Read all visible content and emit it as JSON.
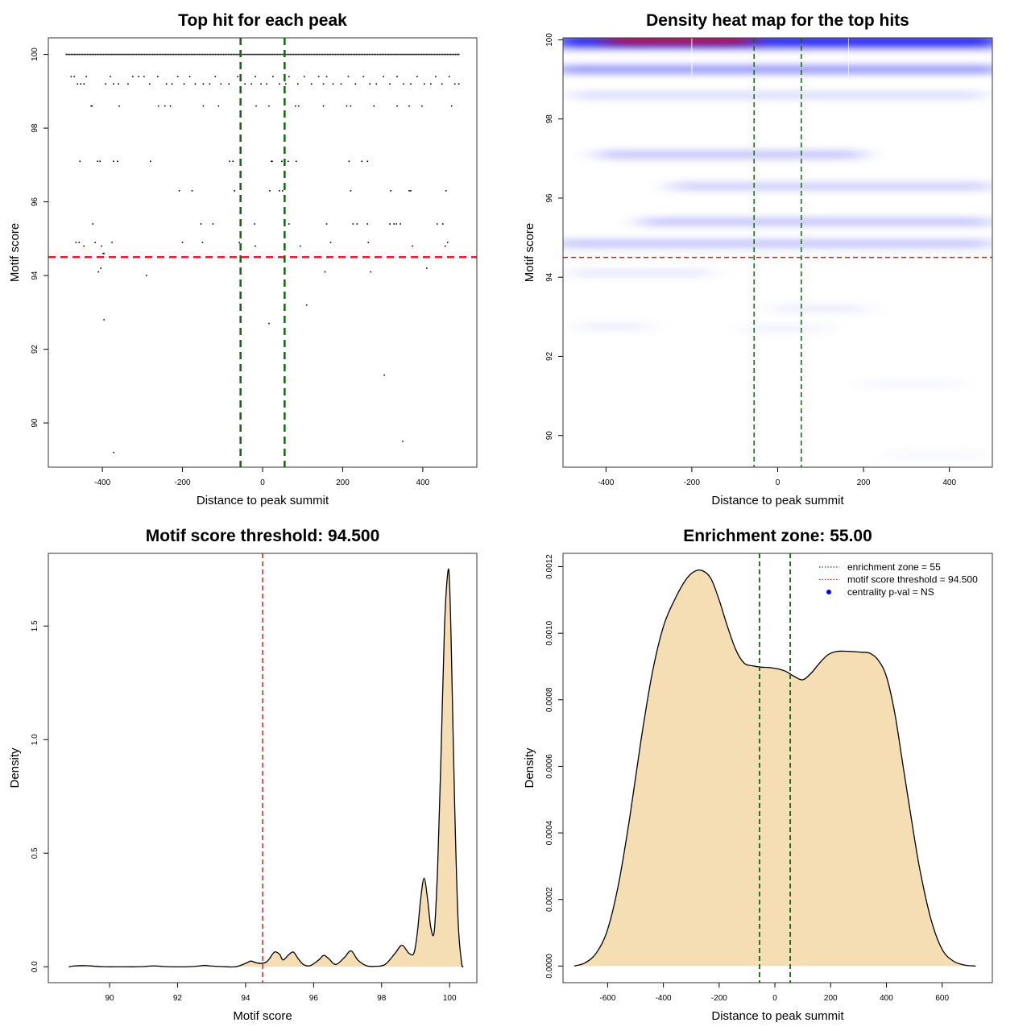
{
  "colors": {
    "threshold": "#dd2222",
    "zone": "#116611",
    "fill": "#f5deb3",
    "heat_low": "#ffffff",
    "heat_mid": "#0000ee",
    "heat_high": "#ee0000"
  },
  "chart_data": [
    {
      "type": "scatter",
      "title": "Top hit for each peak",
      "xlabel": "Distance to peak summit",
      "ylabel": "Motif score",
      "xlim": [
        -535,
        535
      ],
      "ylim": [
        88.8,
        100.45
      ],
      "xticks": [
        -400,
        -200,
        0,
        200,
        400
      ],
      "yticks": [
        90,
        92,
        94,
        96,
        98,
        100
      ],
      "threshold": 94.5,
      "zone": [
        -55,
        55
      ],
      "points": [
        [
          -478,
          99.4
        ],
        [
          -470,
          99.4
        ],
        [
          -462,
          99.2
        ],
        [
          -454,
          99.2
        ],
        [
          -446,
          99.2
        ],
        [
          -440,
          99.4
        ],
        [
          -392,
          99.2
        ],
        [
          -380,
          99.4
        ],
        [
          -372,
          99.2
        ],
        [
          -360,
          99.2
        ],
        [
          -336,
          99.2
        ],
        [
          -324,
          99.4
        ],
        [
          -310,
          99.4
        ],
        [
          -296,
          99.4
        ],
        [
          -282,
          99.2
        ],
        [
          -262,
          99.4
        ],
        [
          -240,
          99.2
        ],
        [
          -226,
          99.2
        ],
        [
          -212,
          99.4
        ],
        [
          -196,
          99.2
        ],
        [
          -182,
          99.4
        ],
        [
          -168,
          99.2
        ],
        [
          -148,
          99.2
        ],
        [
          -132,
          99.2
        ],
        [
          -118,
          99.4
        ],
        [
          -104,
          99.2
        ],
        [
          -84,
          99.2
        ],
        [
          -62,
          99.4
        ],
        [
          -44,
          99.2
        ],
        [
          -28,
          99.2
        ],
        [
          -18,
          99.4
        ],
        [
          -4,
          99.2
        ],
        [
          10,
          99.2
        ],
        [
          26,
          99.4
        ],
        [
          42,
          99.2
        ],
        [
          58,
          99.2
        ],
        [
          66,
          99.4
        ],
        [
          88,
          99.2
        ],
        [
          104,
          99.4
        ],
        [
          122,
          99.2
        ],
        [
          140,
          99.4
        ],
        [
          152,
          99.2
        ],
        [
          160,
          99.4
        ],
        [
          176,
          99.2
        ],
        [
          196,
          99.2
        ],
        [
          214,
          99.4
        ],
        [
          232,
          99.2
        ],
        [
          252,
          99.4
        ],
        [
          268,
          99.2
        ],
        [
          284,
          99.2
        ],
        [
          302,
          99.4
        ],
        [
          318,
          99.2
        ],
        [
          336,
          99.4
        ],
        [
          352,
          99.2
        ],
        [
          370,
          99.2
        ],
        [
          386,
          99.4
        ],
        [
          404,
          99.2
        ],
        [
          420,
          99.2
        ],
        [
          432,
          99.4
        ],
        [
          448,
          99.2
        ],
        [
          466,
          99.4
        ],
        [
          480,
          99.2
        ],
        [
          490,
          99.2
        ],
        [
          -428,
          98.6
        ],
        [
          -426,
          98.6
        ],
        [
          -358,
          98.6
        ],
        [
          -260,
          98.6
        ],
        [
          -244,
          98.6
        ],
        [
          -230,
          98.6
        ],
        [
          -148,
          98.6
        ],
        [
          -110,
          98.6
        ],
        [
          -16,
          98.6
        ],
        [
          16,
          98.6
        ],
        [
          82,
          98.6
        ],
        [
          90,
          98.6
        ],
        [
          152,
          98.6
        ],
        [
          210,
          98.6
        ],
        [
          220,
          98.6
        ],
        [
          278,
          98.6
        ],
        [
          336,
          98.6
        ],
        [
          366,
          98.6
        ],
        [
          398,
          98.6
        ],
        [
          472,
          98.6
        ],
        [
          -456,
          97.1
        ],
        [
          -412,
          97.1
        ],
        [
          -406,
          97.1
        ],
        [
          -372,
          97.1
        ],
        [
          -362,
          97.1
        ],
        [
          -280,
          97.1
        ],
        [
          -82,
          97.1
        ],
        [
          -74,
          97.1
        ],
        [
          22,
          97.1
        ],
        [
          24,
          97.1
        ],
        [
          48,
          97.1
        ],
        [
          64,
          97.1
        ],
        [
          84,
          97.1
        ],
        [
          216,
          97.1
        ],
        [
          248,
          97.1
        ],
        [
          262,
          97.1
        ],
        [
          -208,
          96.3
        ],
        [
          -176,
          96.3
        ],
        [
          -70,
          96.3
        ],
        [
          18,
          96.3
        ],
        [
          42,
          96.3
        ],
        [
          50,
          96.3
        ],
        [
          220,
          96.3
        ],
        [
          320,
          96.3
        ],
        [
          366,
          96.3
        ],
        [
          370,
          96.3
        ],
        [
          458,
          96.3
        ],
        [
          -424,
          95.4
        ],
        [
          -154,
          95.4
        ],
        [
          -124,
          95.4
        ],
        [
          -54,
          95.4
        ],
        [
          -20,
          95.4
        ],
        [
          66,
          95.4
        ],
        [
          160,
          95.4
        ],
        [
          226,
          95.4
        ],
        [
          236,
          95.4
        ],
        [
          262,
          95.4
        ],
        [
          318,
          95.4
        ],
        [
          328,
          95.4
        ],
        [
          334,
          95.4
        ],
        [
          344,
          95.4
        ],
        [
          436,
          95.4
        ],
        [
          450,
          95.4
        ],
        [
          -466,
          94.9
        ],
        [
          -458,
          94.9
        ],
        [
          -418,
          94.9
        ],
        [
          -376,
          94.9
        ],
        [
          -200,
          94.9
        ],
        [
          -150,
          94.9
        ],
        [
          -58,
          94.9
        ],
        [
          170,
          94.9
        ],
        [
          264,
          94.9
        ],
        [
          462,
          94.9
        ],
        [
          -446,
          94.8
        ],
        [
          -402,
          94.8
        ],
        [
          -18,
          94.8
        ],
        [
          94,
          94.8
        ],
        [
          374,
          94.8
        ],
        [
          456,
          94.8
        ],
        [
          -398,
          94.6
        ],
        [
          -396,
          94.6
        ],
        [
          -404,
          94.2
        ],
        [
          410,
          94.2
        ],
        [
          -410,
          94.1
        ],
        [
          -290,
          94.0
        ],
        [
          156,
          94.1
        ],
        [
          270,
          94.1
        ],
        [
          110,
          93.2
        ],
        [
          -396,
          92.8
        ],
        [
          16,
          92.7
        ],
        [
          304,
          91.3
        ],
        [
          -372,
          89.2
        ],
        [
          350,
          89.5
        ]
      ]
    },
    {
      "type": "heatmap",
      "title": "Density heat map for the top hits",
      "xlabel": "Distance to peak summit",
      "ylabel": "Motif score",
      "xlim": [
        -500,
        500
      ],
      "ylim": [
        89.2,
        100.05
      ],
      "xticks": [
        -400,
        -200,
        0,
        200,
        400
      ],
      "yticks": [
        90,
        92,
        94,
        96,
        98,
        100
      ],
      "threshold": 94.5,
      "zone": [
        -55,
        55
      ]
    },
    {
      "type": "area",
      "title": "Motif score threshold: 94.500",
      "xlabel": "Motif score",
      "ylabel": "Density",
      "xlim": [
        88.2,
        100.8
      ],
      "ylim": [
        -0.07,
        1.82
      ],
      "xticks": [
        90,
        92,
        94,
        96,
        98,
        100
      ],
      "yticks": [
        0.0,
        0.5,
        1.0,
        1.5
      ],
      "ytick_labels": [
        "0.0",
        "0.5",
        "1.0",
        "1.5"
      ],
      "threshold": 94.5,
      "x": [
        88.8,
        89.0,
        89.3,
        89.6,
        89.9,
        90.3,
        90.8,
        91.1,
        91.3,
        91.5,
        91.8,
        92.3,
        92.6,
        92.8,
        93.0,
        93.3,
        93.7,
        94.0,
        94.15,
        94.3,
        94.45,
        94.6,
        94.7,
        94.85,
        95.0,
        95.1,
        95.25,
        95.4,
        95.55,
        95.7,
        95.9,
        96.15,
        96.3,
        96.45,
        96.65,
        96.9,
        97.1,
        97.3,
        97.55,
        97.8,
        98.1,
        98.4,
        98.6,
        98.8,
        98.95,
        99.05,
        99.15,
        99.25,
        99.35,
        99.45,
        99.55,
        99.65,
        99.75,
        99.85,
        99.95,
        100.0,
        100.05,
        100.15,
        100.25,
        100.35,
        100.4
      ],
      "y": [
        0.0,
        0.004,
        0.005,
        0.002,
        0.0,
        0.0,
        0.0,
        0.002,
        0.004,
        0.002,
        0.0,
        0.0,
        0.003,
        0.006,
        0.003,
        0.001,
        0.0,
        0.015,
        0.025,
        0.018,
        0.015,
        0.02,
        0.035,
        0.065,
        0.055,
        0.03,
        0.05,
        0.065,
        0.035,
        0.01,
        0.005,
        0.03,
        0.05,
        0.035,
        0.01,
        0.04,
        0.07,
        0.03,
        0.005,
        0.002,
        0.01,
        0.06,
        0.095,
        0.06,
        0.06,
        0.15,
        0.3,
        0.39,
        0.3,
        0.17,
        0.16,
        0.45,
        0.95,
        1.5,
        1.74,
        1.68,
        1.4,
        0.7,
        0.2,
        0.02,
        0.0
      ]
    },
    {
      "type": "area",
      "title": "Enrichment zone: 55.00",
      "xlabel": "Distance to peak summit",
      "ylabel": "Density",
      "xlim": [
        -760,
        780
      ],
      "ylim": [
        -5e-05,
        0.00124
      ],
      "xticks": [
        -600,
        -400,
        -200,
        0,
        200,
        400,
        600
      ],
      "yticks": [
        0.0,
        0.0002,
        0.0004,
        0.0006,
        0.0008,
        0.001,
        0.0012
      ],
      "ytick_labels": [
        "0.0000",
        "0.0002",
        "0.0004",
        "0.0006",
        "0.0008",
        "0.0010",
        "0.0012"
      ],
      "zone": [
        -55,
        55
      ],
      "x": [
        -720,
        -680,
        -640,
        -600,
        -560,
        -520,
        -480,
        -440,
        -400,
        -360,
        -320,
        -290,
        -260,
        -230,
        -200,
        -170,
        -140,
        -110,
        -80,
        -50,
        -20,
        10,
        40,
        70,
        100,
        130,
        160,
        190,
        220,
        250,
        280,
        310,
        340,
        370,
        400,
        430,
        460,
        490,
        520,
        560,
        600,
        640,
        680,
        720
      ],
      "y": [
        0.0,
        1e-05,
        4e-05,
        0.00011,
        0.00025,
        0.00045,
        0.00068,
        0.00088,
        0.00102,
        0.0011,
        0.00116,
        0.001185,
        0.001188,
        0.001165,
        0.0011,
        0.00102,
        0.00095,
        0.00091,
        0.000902,
        0.000898,
        0.000897,
        0.000893,
        0.000885,
        0.00087,
        0.00086,
        0.00088,
        0.00091,
        0.000935,
        0.000945,
        0.000946,
        0.000945,
        0.000943,
        0.00094,
        0.00092,
        0.00087,
        0.00076,
        0.0006,
        0.00044,
        0.00029,
        0.00014,
        5e-05,
        1.5e-05,
        3e-06,
        0.0
      ],
      "legend": [
        {
          "label": "enrichment zone = 55",
          "kind": "dotted-green"
        },
        {
          "label": "motif score threshold = 94.500",
          "kind": "dotted-red"
        },
        {
          "label": "centrality p-val = NS",
          "kind": "blue-dot"
        }
      ]
    }
  ]
}
